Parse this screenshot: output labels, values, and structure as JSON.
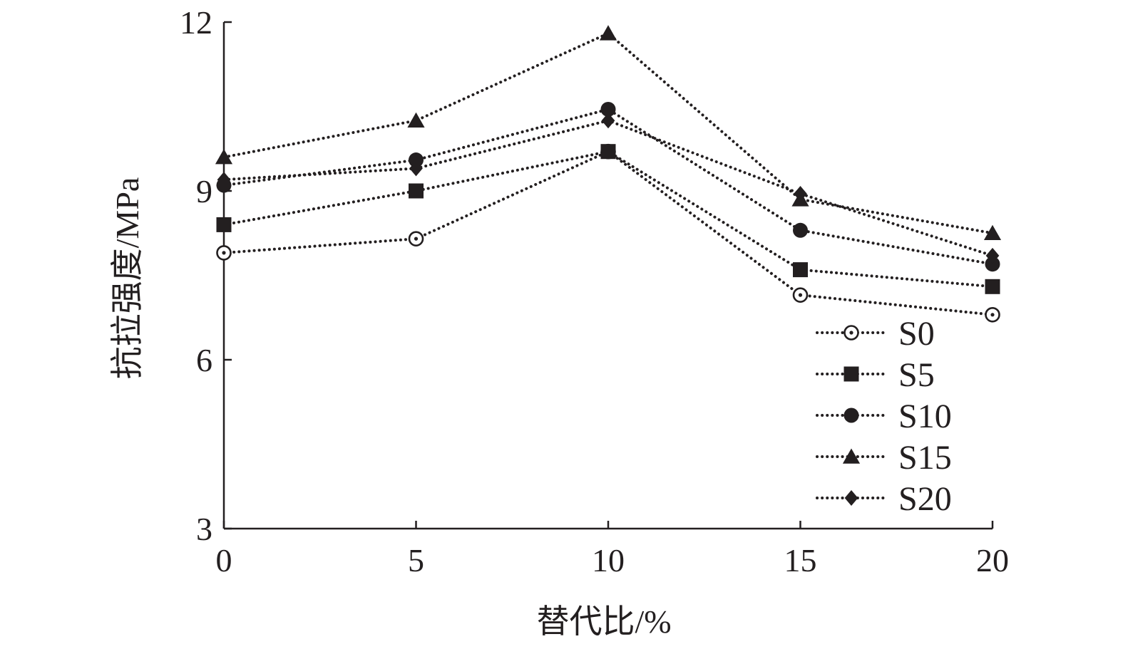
{
  "chart_data": {
    "type": "line",
    "xlabel": "替代比/%",
    "ylabel": "抗拉强度/MPa",
    "x": [
      0,
      5,
      10,
      15,
      20
    ],
    "xticks": [
      "0",
      "5",
      "10",
      "15",
      "20"
    ],
    "yticks": [
      "3",
      "6",
      "9",
      "12"
    ],
    "xlim": [
      0,
      20
    ],
    "ylim": [
      3,
      12
    ],
    "grid": false,
    "legend_position": "bottom-right",
    "line_style": "dotted",
    "line_color": "#231f20",
    "series": [
      {
        "name": "S0",
        "marker": "circle-dot",
        "values": [
          7.9,
          8.15,
          9.7,
          7.15,
          6.8
        ]
      },
      {
        "name": "S5",
        "marker": "square",
        "values": [
          8.4,
          9.0,
          9.7,
          7.6,
          7.3
        ]
      },
      {
        "name": "S10",
        "marker": "filled-circle",
        "values": [
          9.1,
          9.55,
          10.45,
          8.3,
          7.7
        ]
      },
      {
        "name": "S15",
        "marker": "triangle",
        "values": [
          9.6,
          10.25,
          11.8,
          8.85,
          8.25
        ]
      },
      {
        "name": "S20",
        "marker": "diamond",
        "values": [
          9.2,
          9.4,
          10.25,
          8.95,
          7.85
        ]
      }
    ]
  }
}
